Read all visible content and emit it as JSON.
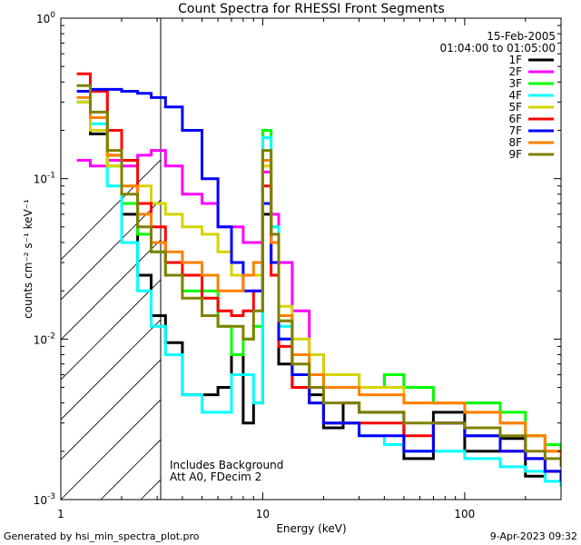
{
  "chart_data": {
    "type": "line",
    "title": "Count Spectra for RHESSI Front Segments",
    "xlabel": "Energy (keV)",
    "ylabel": "counts cm⁻² s⁻¹ keV⁻¹",
    "x_scale": "log",
    "y_scale": "log",
    "xlim": [
      1,
      300
    ],
    "ylim": [
      0.001,
      1
    ],
    "x_ticks": [
      {
        "value": 1,
        "label": "1"
      },
      {
        "value": 10,
        "label": "10"
      },
      {
        "value": 100,
        "label": "100"
      }
    ],
    "y_ticks": [
      {
        "value": 1,
        "label": "10",
        "exp": "0"
      },
      {
        "value": 0.1,
        "label": "10",
        "exp": "-1"
      },
      {
        "value": 0.01,
        "label": "10",
        "exp": "-2"
      },
      {
        "value": 0.001,
        "label": "10",
        "exp": "-3"
      }
    ],
    "date": "15-Feb-2005",
    "time_range": "01:04:00 to 01:05:00",
    "annotation_lines": [
      "Includes Background",
      "Att A0, FDecim 2"
    ],
    "hatched_below_keV": 3,
    "series": [
      {
        "name": "1F",
        "color": "#000000",
        "x": [
          1.2,
          1.4,
          1.7,
          2.0,
          2.4,
          2.8,
          3.3,
          4.0,
          5.0,
          6.0,
          7.0,
          8.0,
          9.0,
          10.0,
          11.0,
          12.0,
          14.0,
          17.0,
          20.0,
          25.0,
          30.0,
          40.0,
          50.0,
          70.0,
          100.0,
          150.0,
          200.0,
          250.0,
          300.0
        ],
        "y": [
          0.3,
          0.19,
          0.14,
          0.06,
          0.025,
          0.014,
          0.0095,
          0.0045,
          0.0045,
          0.005,
          0.008,
          0.003,
          0.004,
          0.06,
          0.03,
          0.007,
          0.005,
          0.0045,
          0.0028,
          0.004,
          0.0035,
          0.0035,
          0.0018,
          0.0035,
          0.002,
          0.0024,
          0.0014,
          0.0015,
          0.0015
        ]
      },
      {
        "name": "2F",
        "color": "#ff00ff",
        "x": [
          1.2,
          1.4,
          1.7,
          2.0,
          2.4,
          2.8,
          3.3,
          4.0,
          5.0,
          6.0,
          7.0,
          8.0,
          9.0,
          10.0,
          11.0,
          12.0,
          14.0,
          17.0,
          20.0,
          25.0,
          30.0,
          40.0,
          50.0,
          70.0,
          100.0,
          150.0,
          200.0,
          250.0,
          300.0
        ],
        "y": [
          0.13,
          0.12,
          0.13,
          0.12,
          0.14,
          0.15,
          0.12,
          0.08,
          0.07,
          0.05,
          0.05,
          0.04,
          0.04,
          0.11,
          0.06,
          0.03,
          0.015,
          0.008,
          0.006,
          0.006,
          0.005,
          0.006,
          0.005,
          0.004,
          0.004,
          0.003,
          0.0025,
          0.002,
          0.0018
        ]
      },
      {
        "name": "3F",
        "color": "#00ff00",
        "x": [
          1.2,
          1.4,
          1.7,
          2.0,
          2.4,
          2.8,
          3.3,
          4.0,
          5.0,
          6.0,
          7.0,
          8.0,
          9.0,
          10.0,
          11.0,
          12.0,
          14.0,
          17.0,
          20.0,
          25.0,
          30.0,
          40.0,
          50.0,
          70.0,
          100.0,
          150.0,
          200.0,
          250.0,
          300.0
        ],
        "y": [
          0.3,
          0.2,
          0.12,
          0.07,
          0.045,
          0.035,
          0.025,
          0.02,
          0.02,
          0.012,
          0.008,
          0.01,
          0.012,
          0.2,
          0.05,
          0.013,
          0.008,
          0.006,
          0.005,
          0.005,
          0.005,
          0.006,
          0.005,
          0.004,
          0.004,
          0.0035,
          0.0025,
          0.0022,
          0.002
        ]
      },
      {
        "name": "4F",
        "color": "#00ffff",
        "x": [
          1.2,
          1.4,
          1.7,
          2.0,
          2.4,
          2.8,
          3.3,
          4.0,
          5.0,
          6.0,
          7.0,
          8.0,
          9.0,
          10.0,
          11.0,
          12.0,
          14.0,
          17.0,
          20.0,
          25.0,
          30.0,
          40.0,
          50.0,
          70.0,
          100.0,
          150.0,
          200.0,
          250.0,
          300.0
        ],
        "y": [
          0.35,
          0.22,
          0.09,
          0.04,
          0.02,
          0.012,
          0.008,
          0.0045,
          0.0035,
          0.0035,
          0.006,
          0.006,
          0.004,
          0.18,
          0.05,
          0.012,
          0.006,
          0.004,
          0.003,
          0.003,
          0.0025,
          0.0022,
          0.002,
          0.002,
          0.0018,
          0.0016,
          0.0015,
          0.0013,
          0.0012
        ]
      },
      {
        "name": "5F",
        "color": "#d4d400",
        "x": [
          1.2,
          1.4,
          1.7,
          2.0,
          2.4,
          2.8,
          3.3,
          4.0,
          5.0,
          6.0,
          7.0,
          8.0,
          9.0,
          10.0,
          11.0,
          12.0,
          14.0,
          17.0,
          20.0,
          25.0,
          30.0,
          40.0,
          50.0,
          70.0,
          100.0,
          150.0,
          200.0,
          250.0,
          300.0
        ],
        "y": [
          0.3,
          0.2,
          0.12,
          0.09,
          0.09,
          0.07,
          0.06,
          0.05,
          0.045,
          0.035,
          0.025,
          0.025,
          0.025,
          0.12,
          0.04,
          0.016,
          0.01,
          0.008,
          0.006,
          0.006,
          0.005,
          0.005,
          0.004,
          0.004,
          0.0035,
          0.003,
          0.0025,
          0.002,
          0.0018
        ]
      },
      {
        "name": "6F",
        "color": "#ff0000",
        "x": [
          1.2,
          1.4,
          1.7,
          2.0,
          2.4,
          2.8,
          3.3,
          4.0,
          5.0,
          6.0,
          7.0,
          8.0,
          9.0,
          10.0,
          11.0,
          12.0,
          14.0,
          17.0,
          20.0,
          25.0,
          30.0,
          40.0,
          50.0,
          70.0,
          100.0,
          150.0,
          200.0,
          250.0,
          300.0
        ],
        "y": [
          0.45,
          0.35,
          0.2,
          0.13,
          0.07,
          0.05,
          0.03,
          0.025,
          0.018,
          0.015,
          0.014,
          0.015,
          0.02,
          0.09,
          0.025,
          0.009,
          0.005,
          0.004,
          0.003,
          0.003,
          0.003,
          0.003,
          0.0025,
          0.003,
          0.0025,
          0.002,
          0.0018,
          0.0015,
          0.0015
        ]
      },
      {
        "name": "7F",
        "color": "#0000ff",
        "x": [
          1.2,
          1.4,
          1.7,
          2.0,
          2.4,
          2.8,
          3.3,
          4.0,
          5.0,
          6.0,
          7.0,
          8.0,
          9.0,
          10.0,
          11.0,
          12.0,
          14.0,
          17.0,
          20.0,
          25.0,
          30.0,
          40.0,
          50.0,
          70.0,
          100.0,
          150.0,
          200.0,
          250.0,
          300.0
        ],
        "y": [
          0.35,
          0.36,
          0.36,
          0.35,
          0.34,
          0.32,
          0.28,
          0.2,
          0.1,
          0.05,
          0.03,
          0.02,
          0.02,
          0.07,
          0.03,
          0.01,
          0.006,
          0.004,
          0.003,
          0.003,
          0.0025,
          0.0025,
          0.002,
          0.003,
          0.0025,
          0.002,
          0.0018,
          0.0015,
          0.0013
        ]
      },
      {
        "name": "8F",
        "color": "#ff8000",
        "x": [
          1.2,
          1.4,
          1.7,
          2.0,
          2.4,
          2.8,
          3.3,
          4.0,
          5.0,
          6.0,
          7.0,
          8.0,
          9.0,
          10.0,
          11.0,
          12.0,
          14.0,
          17.0,
          20.0,
          25.0,
          30.0,
          40.0,
          50.0,
          70.0,
          100.0,
          150.0,
          200.0,
          250.0,
          300.0
        ],
        "y": [
          0.32,
          0.24,
          0.14,
          0.09,
          0.06,
          0.04,
          0.035,
          0.03,
          0.025,
          0.02,
          0.02,
          0.025,
          0.03,
          0.13,
          0.04,
          0.014,
          0.008,
          0.006,
          0.005,
          0.005,
          0.0045,
          0.0045,
          0.004,
          0.004,
          0.0035,
          0.003,
          0.0025,
          0.002,
          0.0018
        ]
      },
      {
        "name": "9F",
        "color": "#808000",
        "x": [
          1.2,
          1.4,
          1.7,
          2.0,
          2.4,
          2.8,
          3.3,
          4.0,
          5.0,
          6.0,
          7.0,
          8.0,
          9.0,
          10.0,
          11.0,
          12.0,
          14.0,
          17.0,
          20.0,
          25.0,
          30.0,
          40.0,
          50.0,
          70.0,
          100.0,
          150.0,
          200.0,
          250.0,
          300.0
        ],
        "y": [
          0.38,
          0.26,
          0.15,
          0.08,
          0.05,
          0.035,
          0.025,
          0.018,
          0.014,
          0.012,
          0.012,
          0.01,
          0.015,
          0.15,
          0.045,
          0.013,
          0.007,
          0.005,
          0.004,
          0.004,
          0.0035,
          0.0035,
          0.003,
          0.003,
          0.0028,
          0.0025,
          0.002,
          0.0018,
          0.0016
        ]
      }
    ]
  },
  "footer": {
    "left": "Generated by hsi_min_spectra_plot.pro",
    "right": "9-Apr-2023 09:32"
  }
}
